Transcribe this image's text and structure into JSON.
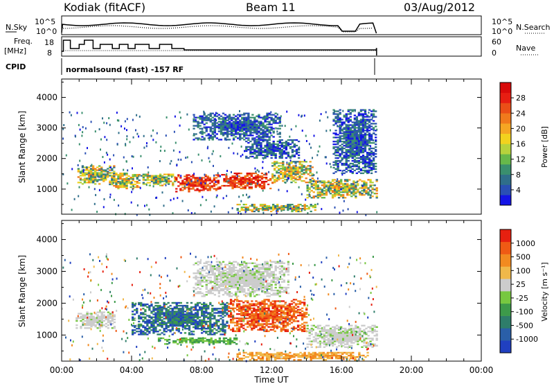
{
  "header": {
    "station": "Kodiak (fitACF)",
    "beam": "Beam 11",
    "date": "03/Aug/2012"
  },
  "param_panel": {
    "nsky_label": "N.Sky",
    "nsky_ticks": [
      "10^5",
      "10^0"
    ],
    "nsearch_label": "N.Search",
    "nsearch_ticks": [
      "10^5",
      "10^0"
    ],
    "freq_label_1": "Freq.",
    "freq_label_2": "[MHz]",
    "freq_ticks": [
      "18",
      "8"
    ],
    "nave_label": "Nave",
    "nave_ticks": [
      "60",
      "0"
    ],
    "cpid_label": "CPID",
    "cpid_text": "normalsound (fast) -157 RF"
  },
  "chart_data": [
    {
      "type": "heatmap",
      "name": "power-panel",
      "ylabel": "Slant Range [km]",
      "yticks": [
        "4000",
        "3000",
        "2000",
        "1000"
      ],
      "ytick_values": [
        4000,
        3000,
        2000,
        1000
      ],
      "ylim": [
        180,
        4600
      ],
      "xlim": [
        0,
        24
      ],
      "colorbar": {
        "label": "Power [dB]",
        "ticks": [
          "28",
          "24",
          "20",
          "16",
          "12",
          "8",
          "4"
        ],
        "tick_values": [
          28,
          24,
          20,
          16,
          12,
          8,
          4
        ],
        "range": [
          0,
          32
        ],
        "colors": [
          "#1414e6",
          "#2a4fb4",
          "#2f6e8a",
          "#3a8f6e",
          "#67b84a",
          "#b7d23c",
          "#f2d21e",
          "#f5a623",
          "#f07a1c",
          "#ea4f17",
          "#e61e12",
          "#d80a0a"
        ]
      },
      "echo_regions": [
        {
          "t": [
            0.9,
            3.0
          ],
          "r": [
            1150,
            1750
          ],
          "level": "mid"
        },
        {
          "t": [
            2.7,
            4.5
          ],
          "r": [
            1000,
            1500
          ],
          "level": "mid"
        },
        {
          "t": [
            4.5,
            6.5
          ],
          "r": [
            1100,
            1500
          ],
          "level": "mid"
        },
        {
          "t": [
            6.5,
            9.0
          ],
          "r": [
            900,
            1450
          ],
          "level": "high"
        },
        {
          "t": [
            9.0,
            12.0
          ],
          "r": [
            1000,
            1500
          ],
          "level": "high"
        },
        {
          "t": [
            12.0,
            14.3
          ],
          "r": [
            1200,
            1900
          ],
          "level": "mid"
        },
        {
          "t": [
            7.5,
            12.5
          ],
          "r": [
            2600,
            3500
          ],
          "level": "low"
        },
        {
          "t": [
            10.5,
            13.5
          ],
          "r": [
            2000,
            2600
          ],
          "level": "low"
        },
        {
          "t": [
            14.0,
            18.0
          ],
          "r": [
            700,
            1300
          ],
          "level": "mid"
        },
        {
          "t": [
            10.0,
            14.5
          ],
          "r": [
            250,
            500
          ],
          "level": "mid"
        },
        {
          "t": [
            15.5,
            18.0
          ],
          "r": [
            1500,
            3600
          ],
          "level": "low"
        }
      ]
    },
    {
      "type": "heatmap",
      "name": "velocity-panel",
      "ylabel": "Slant Range [km]",
      "yticks": [
        "4000",
        "3000",
        "2000",
        "1000"
      ],
      "ytick_values": [
        4000,
        3000,
        2000,
        1000
      ],
      "ylim": [
        180,
        4600
      ],
      "xlim": [
        0,
        24
      ],
      "xlabel": "Time UT",
      "xticks": [
        "00:00",
        "04:00",
        "08:00",
        "12:00",
        "16:00",
        "20:00",
        "00:00"
      ],
      "xtick_values": [
        0,
        4,
        8,
        12,
        16,
        20,
        24
      ],
      "colorbar": {
        "label": "Velocity [m s⁻¹]",
        "ticks": [
          "1000",
          "500",
          "100",
          "25",
          "-25",
          "-100",
          "-500",
          "-1000"
        ],
        "colors": [
          "#2040c0",
          "#2a5fa8",
          "#2e7d6a",
          "#3d9a4a",
          "#77c840",
          "#cccccc",
          "#f0b84a",
          "#f28a20",
          "#ef5a14",
          "#e62010"
        ]
      },
      "echo_regions": [
        {
          "t": [
            4.0,
            9.5
          ],
          "r": [
            1000,
            2000
          ],
          "level": "toward"
        },
        {
          "t": [
            9.5,
            14.0
          ],
          "r": [
            1100,
            2100
          ],
          "level": "away"
        },
        {
          "t": [
            7.5,
            13.0
          ],
          "r": [
            2200,
            3300
          ],
          "level": "ground"
        },
        {
          "t": [
            14.0,
            18.0
          ],
          "r": [
            600,
            1300
          ],
          "level": "ground"
        },
        {
          "t": [
            10.0,
            17.5
          ],
          "r": [
            200,
            450
          ],
          "level": "slowaway"
        },
        {
          "t": [
            5.5,
            10.0
          ],
          "r": [
            700,
            900
          ],
          "level": "slowtoward"
        },
        {
          "t": [
            0.8,
            3.0
          ],
          "r": [
            1200,
            1700
          ],
          "level": "ground"
        }
      ]
    }
  ]
}
